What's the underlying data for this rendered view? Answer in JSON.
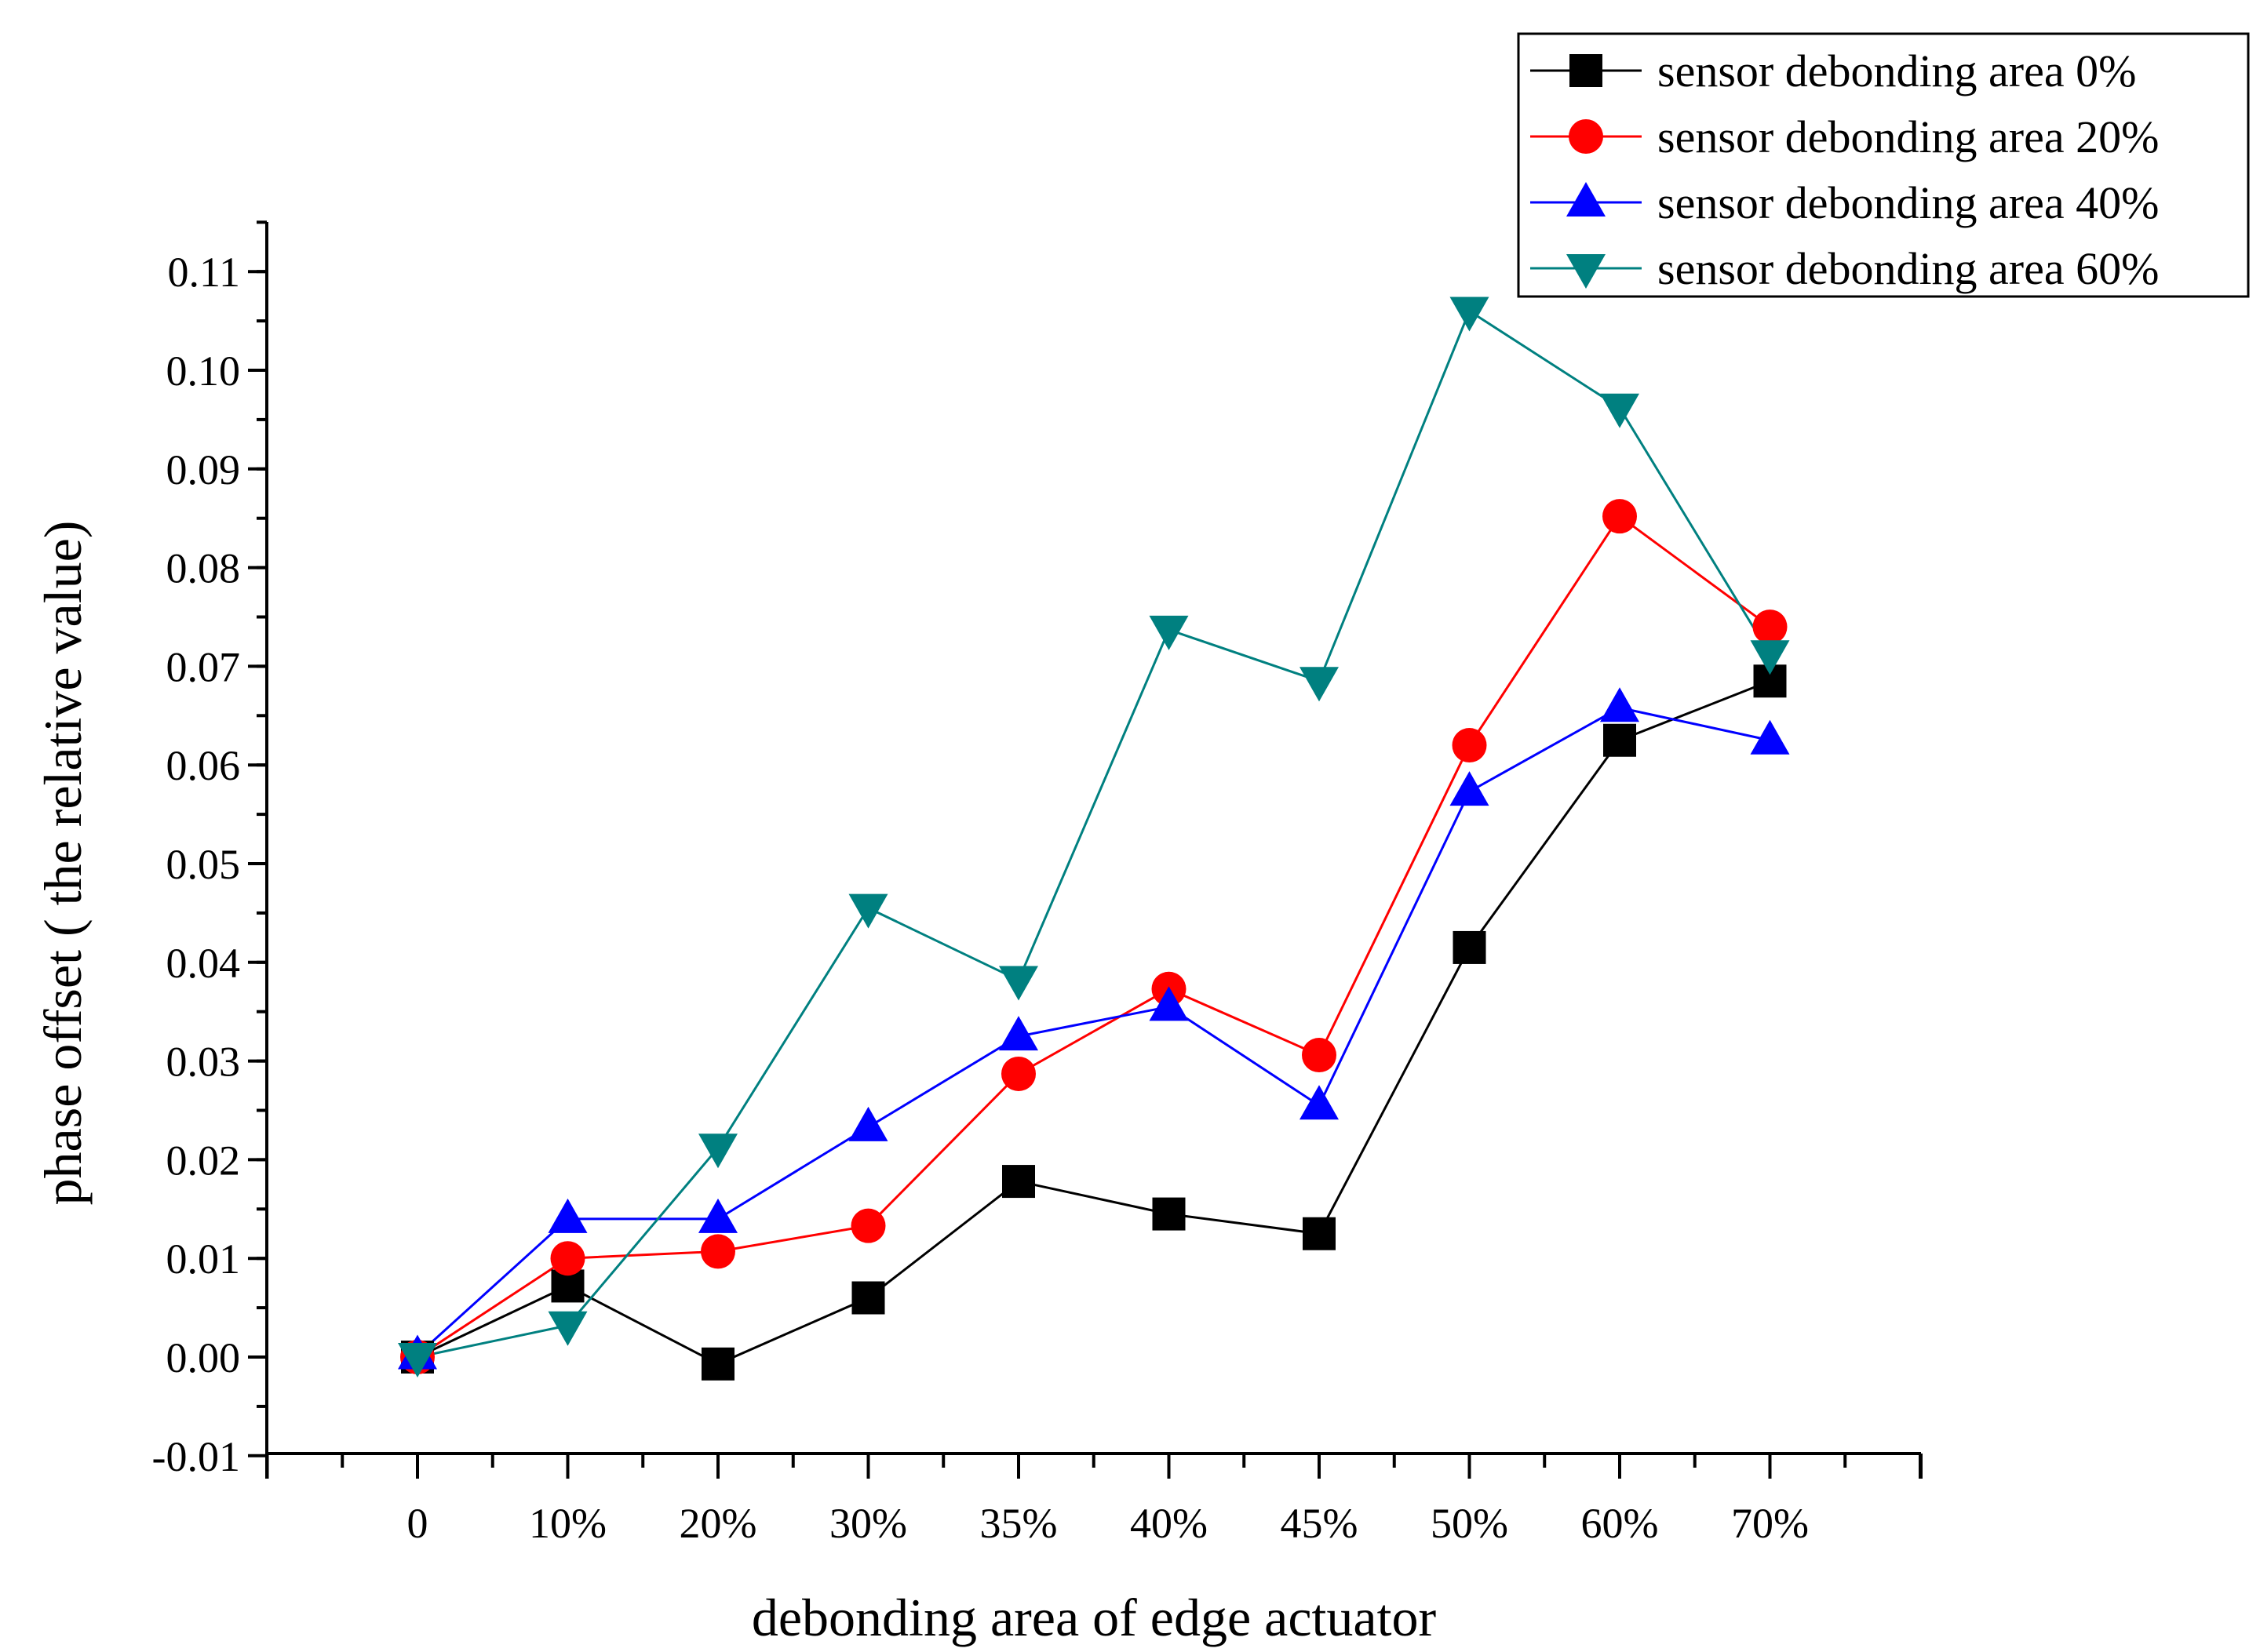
{
  "chart_data": {
    "type": "line",
    "title": "",
    "xlabel": "debonding area of edge actuator",
    "ylabel": "phase offset ( the relative value)",
    "categories": [
      "0",
      "10%",
      "20%",
      "30%",
      "35%",
      "40%",
      "45%",
      "50%",
      "60%",
      "70%"
    ],
    "ylim": [
      -0.01,
      0.115
    ],
    "yticks": [
      "-0.01",
      "0.00",
      "0.01",
      "0.02",
      "0.03",
      "0.04",
      "0.05",
      "0.06",
      "0.07",
      "0.08",
      "0.09",
      "0.10",
      "0.11"
    ],
    "legend_position": "top-right",
    "grid": false,
    "series": [
      {
        "name": "sensor debonding area 0%",
        "color": "#000000",
        "marker": "square",
        "values": [
          0.0,
          0.0072,
          -0.0007,
          0.006,
          0.0178,
          0.0145,
          0.0125,
          0.0415,
          0.0625,
          0.0685
        ]
      },
      {
        "name": "sensor debonding area 20%",
        "color": "#ff0000",
        "marker": "circle",
        "values": [
          0.0,
          0.01,
          0.0107,
          0.0133,
          0.0287,
          0.0373,
          0.0306,
          0.062,
          0.0852,
          0.074
        ]
      },
      {
        "name": "sensor debonding area 40%",
        "color": "#0000ff",
        "marker": "triangle-up",
        "values": [
          0.0002,
          0.014,
          0.014,
          0.0233,
          0.0325,
          0.0355,
          0.0255,
          0.0573,
          0.0658,
          0.0625
        ]
      },
      {
        "name": "sensor debonding area 60%",
        "color": "#008080",
        "marker": "triangle-down",
        "values": [
          0.0,
          0.0032,
          0.0212,
          0.0455,
          0.0382,
          0.0737,
          0.0685,
          0.106,
          0.0962,
          0.0712
        ]
      }
    ]
  }
}
